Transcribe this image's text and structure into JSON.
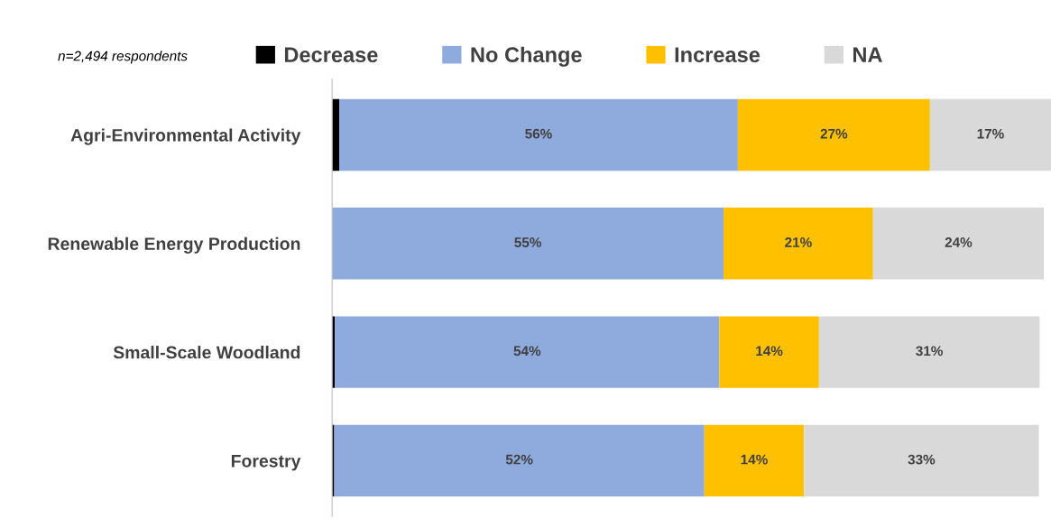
{
  "chart_data": {
    "type": "bar",
    "orientation": "horizontal",
    "stacked": true,
    "categories": [
      "Agri-Environmental Activity",
      "Renewable Energy Production",
      "Small-Scale Woodland",
      "Forestry"
    ],
    "series": [
      {
        "name": "Decrease",
        "color": "#000000",
        "values": [
          1,
          0,
          0.4,
          0.3
        ],
        "value_labels": [
          null,
          null,
          null,
          null
        ]
      },
      {
        "name": "No Change",
        "color": "#8faadc",
        "values": [
          56,
          55,
          54,
          52
        ],
        "value_labels": [
          "56%",
          "55%",
          "54%",
          "52%"
        ]
      },
      {
        "name": "Increase",
        "color": "#ffc000",
        "values": [
          27,
          21,
          14,
          14
        ],
        "value_labels": [
          "27%",
          "21%",
          "14%",
          "14%"
        ]
      },
      {
        "name": "NA",
        "color": "#d9d9d9",
        "values": [
          17,
          24,
          31,
          33
        ],
        "value_labels": [
          "17%",
          "24%",
          "31%",
          "33%"
        ]
      }
    ],
    "annotations": [
      "n=2,494 respondents"
    ],
    "legend": "top",
    "grid": false
  }
}
